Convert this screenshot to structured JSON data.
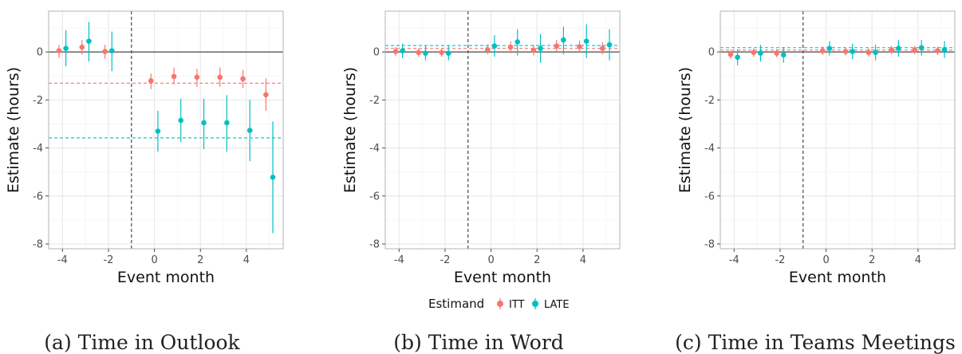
{
  "legend": {
    "title": "Estimand",
    "items": [
      {
        "label": "ITT",
        "color": "#F8766D"
      },
      {
        "label": "LATE",
        "color": "#00BFC4"
      }
    ]
  },
  "chart_data": [
    {
      "type": "scatter",
      "caption": "(a) Time in Outlook",
      "xlabel": "Event month",
      "ylabel": "Estimate (hours)",
      "xlim": [
        -4.6,
        5.6
      ],
      "ylim": [
        -8.2,
        1.7
      ],
      "x_ticks": [
        -4,
        -2,
        0,
        2,
        4
      ],
      "y_ticks": [
        0,
        -2,
        -4,
        -6,
        -8
      ],
      "event_line_x": -1,
      "series": [
        {
          "name": "ITT",
          "color": "#F8766D",
          "x": [
            -4,
            -3,
            -2,
            0,
            1,
            2,
            3,
            4,
            5
          ],
          "y": [
            0.05,
            0.2,
            0.02,
            -1.2,
            -1.02,
            -1.05,
            -1.05,
            -1.12,
            -1.78
          ],
          "lo": [
            -0.25,
            -0.1,
            -0.28,
            -1.55,
            -1.35,
            -1.45,
            -1.45,
            -1.5,
            -2.45
          ],
          "hi": [
            0.3,
            0.5,
            0.3,
            -0.9,
            -0.65,
            -0.7,
            -0.65,
            -0.75,
            -1.1
          ],
          "mean": -1.3
        },
        {
          "name": "LATE",
          "color": "#00BFC4",
          "x": [
            -4,
            -3,
            -2,
            0,
            1,
            2,
            3,
            4,
            5
          ],
          "y": [
            0.15,
            0.45,
            0.05,
            -3.3,
            -2.85,
            -2.95,
            -2.95,
            -3.27,
            -5.22
          ],
          "lo": [
            -0.6,
            -0.4,
            -0.8,
            -4.15,
            -3.75,
            -4.05,
            -4.15,
            -4.55,
            -7.55
          ],
          "hi": [
            0.9,
            1.25,
            0.85,
            -2.45,
            -1.95,
            -1.95,
            -1.8,
            -2.0,
            -2.9
          ],
          "mean": -3.58
        }
      ]
    },
    {
      "type": "scatter",
      "caption": "(b) Time in Word",
      "xlabel": "Event month",
      "ylabel": "Estimate (hours)",
      "xlim": [
        -4.6,
        5.6
      ],
      "ylim": [
        -8.2,
        1.7
      ],
      "x_ticks": [
        -4,
        -2,
        0,
        2,
        4
      ],
      "y_ticks": [
        0,
        -2,
        -4,
        -6,
        -8
      ],
      "event_line_x": -1,
      "series": [
        {
          "name": "ITT",
          "color": "#F8766D",
          "x": [
            -4,
            -3,
            -2,
            0,
            1,
            2,
            3,
            4,
            5
          ],
          "y": [
            0.02,
            -0.02,
            -0.02,
            0.1,
            0.2,
            0.08,
            0.25,
            0.22,
            0.15
          ],
          "lo": [
            -0.15,
            -0.2,
            -0.2,
            -0.1,
            -0.05,
            -0.15,
            0.0,
            -0.02,
            -0.1
          ],
          "hi": [
            0.2,
            0.15,
            0.15,
            0.3,
            0.45,
            0.3,
            0.5,
            0.48,
            0.4
          ],
          "mean": 0.15
        },
        {
          "name": "LATE",
          "color": "#00BFC4",
          "x": [
            -4,
            -3,
            -2,
            0,
            1,
            2,
            3,
            4,
            5
          ],
          "y": [
            0.05,
            -0.05,
            -0.05,
            0.25,
            0.42,
            0.15,
            0.5,
            0.45,
            0.3
          ],
          "lo": [
            -0.25,
            -0.35,
            -0.35,
            -0.2,
            -0.15,
            -0.45,
            -0.1,
            -0.25,
            -0.35
          ],
          "hi": [
            0.35,
            0.25,
            0.25,
            0.7,
            0.95,
            0.75,
            1.05,
            1.15,
            0.95
          ],
          "mean": 0.27
        }
      ]
    },
    {
      "type": "scatter",
      "caption": "(c) Time in Teams Meetings",
      "xlabel": "Event month",
      "ylabel": "Estimate (hours)",
      "xlim": [
        -4.6,
        5.6
      ],
      "ylim": [
        -8.2,
        1.7
      ],
      "x_ticks": [
        -4,
        -2,
        0,
        2,
        4
      ],
      "y_ticks": [
        0,
        -2,
        -4,
        -6,
        -8
      ],
      "event_line_x": -1,
      "series": [
        {
          "name": "ITT",
          "color": "#F8766D",
          "x": [
            -4,
            -3,
            -2,
            0,
            1,
            2,
            3,
            4,
            5
          ],
          "y": [
            -0.1,
            -0.02,
            -0.05,
            0.05,
            0.02,
            -0.02,
            0.08,
            0.08,
            0.05
          ],
          "lo": [
            -0.28,
            -0.2,
            -0.22,
            -0.12,
            -0.15,
            -0.2,
            -0.1,
            -0.1,
            -0.12
          ],
          "hi": [
            0.08,
            0.15,
            0.12,
            0.22,
            0.2,
            0.15,
            0.25,
            0.25,
            0.22
          ],
          "mean": 0.08
        },
        {
          "name": "LATE",
          "color": "#00BFC4",
          "x": [
            -4,
            -3,
            -2,
            0,
            1,
            2,
            3,
            4,
            5
          ],
          "y": [
            -0.22,
            -0.05,
            -0.12,
            0.15,
            0.02,
            -0.02,
            0.15,
            0.18,
            0.1
          ],
          "lo": [
            -0.55,
            -0.4,
            -0.45,
            -0.15,
            -0.3,
            -0.35,
            -0.2,
            -0.15,
            -0.25
          ],
          "hi": [
            0.1,
            0.3,
            0.2,
            0.45,
            0.35,
            0.3,
            0.5,
            0.5,
            0.45
          ],
          "mean": 0.18
        }
      ]
    }
  ]
}
